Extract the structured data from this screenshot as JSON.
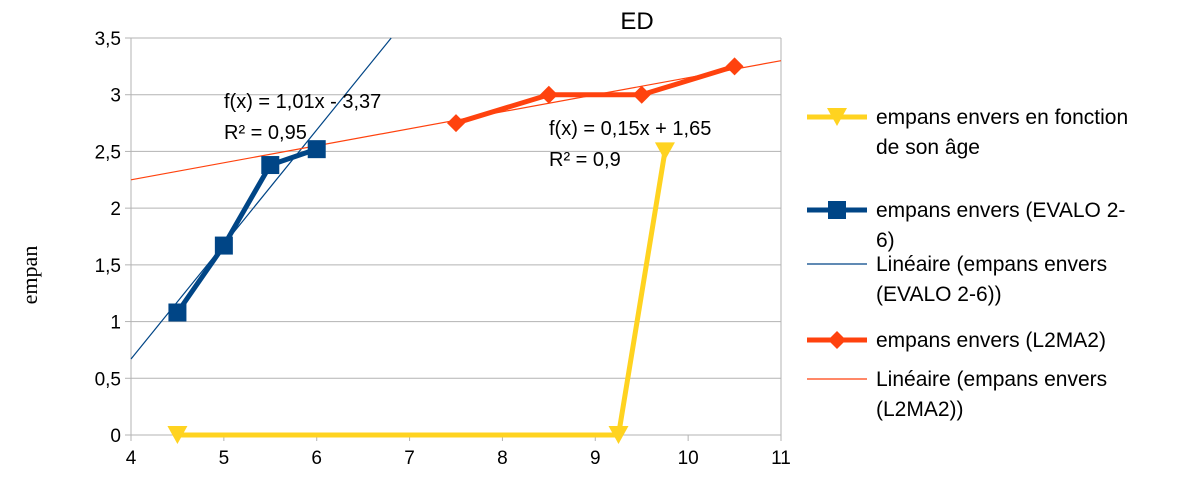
{
  "chart_data": {
    "type": "line",
    "title": "ED",
    "xlabel": "",
    "ylabel": "empan",
    "xlim": [
      4,
      11
    ],
    "ylim": [
      0,
      3.5
    ],
    "x_ticks": [
      "4",
      "5",
      "6",
      "7",
      "8",
      "9",
      "10",
      "11"
    ],
    "y_ticks": [
      "0",
      "0,5",
      "1",
      "1,5",
      "2",
      "2,5",
      "3",
      "3,5"
    ],
    "grid": "horizontal",
    "legend_position": "right",
    "series": [
      {
        "name": "empans envers en fonction de son âge",
        "color": "#ffd320",
        "marker": "triangle-down",
        "points": [
          [
            4.5,
            0
          ],
          [
            9.25,
            0
          ],
          [
            9.75,
            2.5
          ]
        ]
      },
      {
        "name": "empans envers (EVALO 2-6)",
        "color": "#004586",
        "marker": "square",
        "points": [
          [
            4.5,
            1.08
          ],
          [
            5,
            1.67
          ],
          [
            5.5,
            2.38
          ],
          [
            6,
            2.52
          ]
        ]
      },
      {
        "name": "empans envers (L2MA2)",
        "color": "#ff420e",
        "marker": "diamond",
        "points": [
          [
            7.5,
            2.75
          ],
          [
            8.5,
            3.0
          ],
          [
            9.5,
            3.0
          ],
          [
            10.5,
            3.25
          ]
        ]
      }
    ],
    "trendlines": [
      {
        "name": "Linéaire (empans envers (EVALO 2-6))",
        "color": "#004586",
        "slope": 1.01,
        "intercept": -3.37,
        "equation": "f(x) = 1,01x - 3,37",
        "r2": "R² = 0,95"
      },
      {
        "name": "Linéaire (empans envers (L2MA2))",
        "color": "#ff420e",
        "slope": 0.15,
        "intercept": 1.65,
        "equation": "f(x) = 0,15x + 1,65",
        "r2": "R² = 0,9"
      }
    ]
  }
}
